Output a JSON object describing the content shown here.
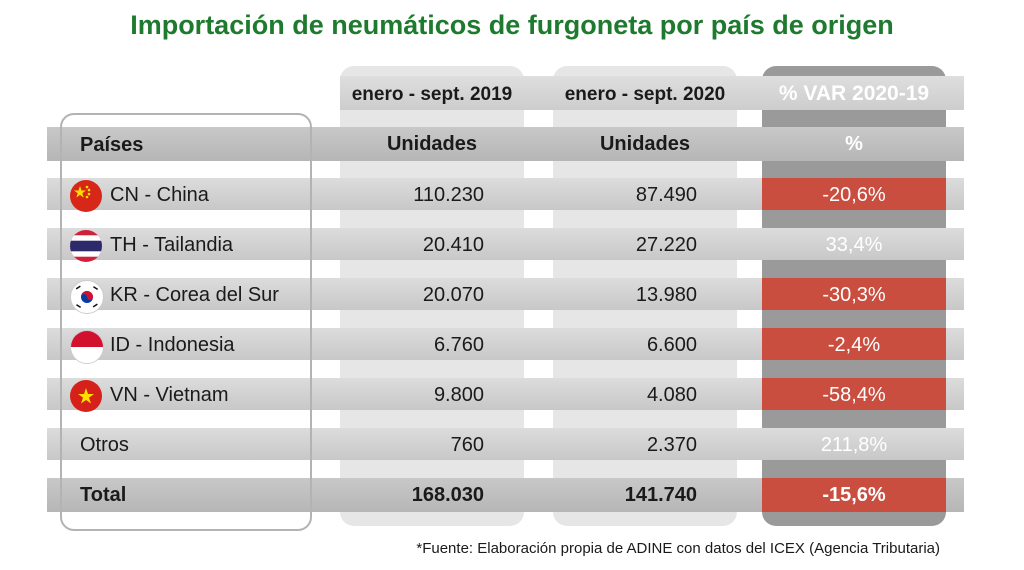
{
  "title": "Importación de neumáticos de furgoneta por país de origen",
  "headers": {
    "period_2019": "enero - sept. 2019",
    "period_2020": "enero - sept. 2020",
    "var": "% VAR 2020-19",
    "countries": "Países",
    "units_2019": "Unidades",
    "units_2020": "Unidades",
    "pct": "%"
  },
  "rows": [
    {
      "country": "CN - China",
      "flag": "china-flag-icon",
      "v2019": "110.230",
      "v2020": "87.490",
      "var": "-20,6%",
      "negative": true
    },
    {
      "country": "TH - Tailandia",
      "flag": "thailand-flag-icon",
      "v2019": "20.410",
      "v2020": "27.220",
      "var": "33,4%",
      "negative": false
    },
    {
      "country": "KR - Corea del Sur",
      "flag": "korea-flag-icon",
      "v2019": "20.070",
      "v2020": "13.980",
      "var": "-30,3%",
      "negative": true
    },
    {
      "country": "ID - Indonesia",
      "flag": "indonesia-flag-icon",
      "v2019": "6.760",
      "v2020": "6.600",
      "var": "-2,4%",
      "negative": true
    },
    {
      "country": "VN - Vietnam",
      "flag": "vietnam-flag-icon",
      "v2019": "9.800",
      "v2020": "4.080",
      "var": "-58,4%",
      "negative": true
    },
    {
      "country": "Otros",
      "flag": "",
      "v2019": "760",
      "v2020": "2.370",
      "var": "211,8%",
      "negative": false
    }
  ],
  "total": {
    "label": "Total",
    "v2019": "168.030",
    "v2020": "141.740",
    "var": "-15,6%"
  },
  "footer": "*Fuente: Elaboración propia de ADINE con datos del ICEX (Agencia Tributaria)",
  "colors": {
    "title": "#1e7a2e",
    "negative": "#c94e3f",
    "var_column": "#9a9a9a"
  }
}
